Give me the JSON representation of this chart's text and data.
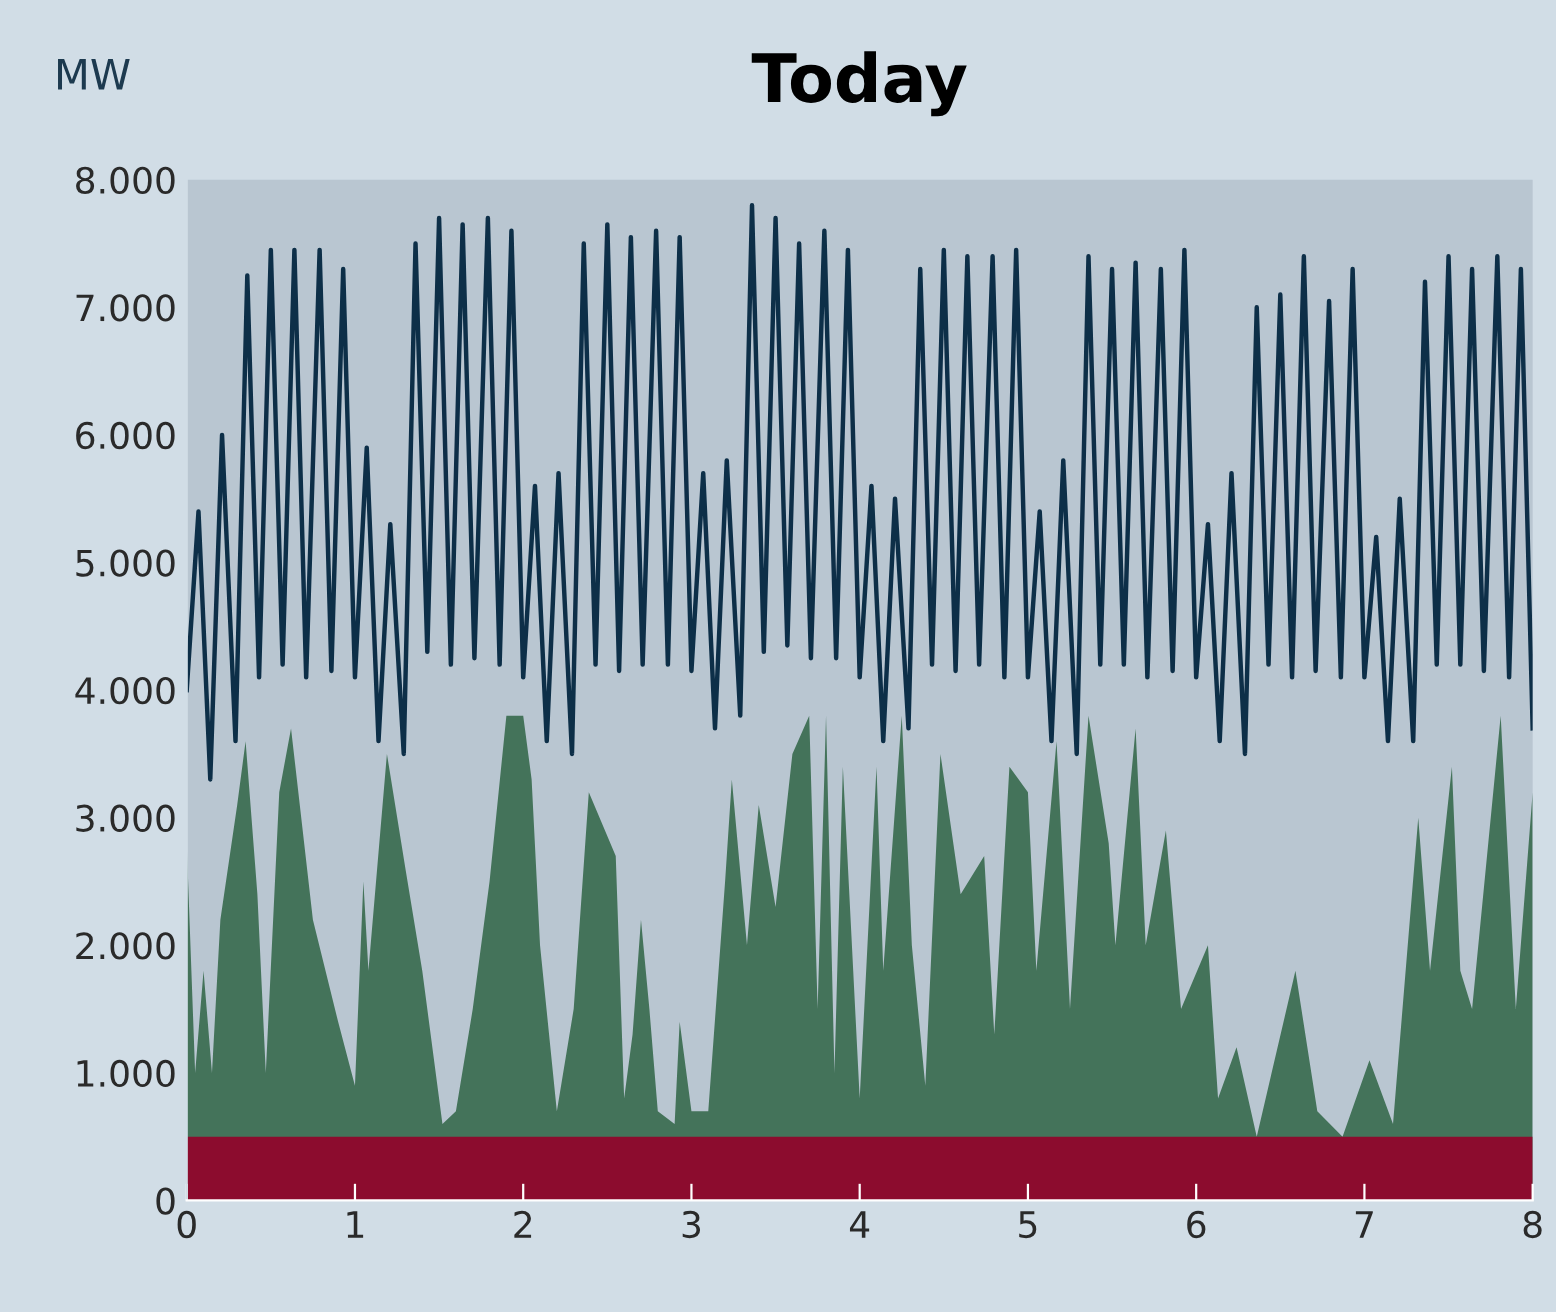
{
  "chart_data": {
    "type": "area",
    "title": "Today",
    "ylabel": "MW",
    "xlim": [
      0,
      8
    ],
    "xticks": [
      0,
      1,
      2,
      3,
      4,
      5,
      6,
      7,
      8
    ],
    "ylim": [
      0,
      8000
    ],
    "yticks": [
      {
        "value": 0,
        "label": "0"
      },
      {
        "value": 1000,
        "label": "1.000"
      },
      {
        "value": 2000,
        "label": "2.000"
      },
      {
        "value": 3000,
        "label": "3.000"
      },
      {
        "value": 4000,
        "label": "4.000"
      },
      {
        "value": 5000,
        "label": "5.000"
      },
      {
        "value": 6000,
        "label": "6.000"
      },
      {
        "value": 7000,
        "label": "7.000"
      },
      {
        "value": 8000,
        "label": "8.000"
      }
    ],
    "grid": false,
    "series": [
      {
        "color": "#44735a",
        "x": [
          0,
          0.05,
          0.1,
          0.15,
          0.2,
          0.3,
          0.35,
          0.42,
          0.47,
          0.55,
          0.62,
          0.75,
          0.9,
          1.0,
          1.05,
          1.08,
          1.19,
          1.3,
          1.4,
          1.52,
          1.6,
          1.7,
          1.8,
          1.9,
          2.0,
          2.05,
          2.1,
          2.2,
          2.3,
          2.39,
          2.55,
          2.6,
          2.65,
          2.7,
          2.75,
          2.8,
          2.9,
          2.93,
          3.0,
          3.1,
          3.2,
          3.24,
          3.33,
          3.4,
          3.5,
          3.6,
          3.7,
          3.75,
          3.8,
          3.85,
          3.9,
          4.0,
          4.1,
          4.14,
          4.25,
          4.31,
          4.39,
          4.48,
          4.6,
          4.74,
          4.8,
          4.89,
          5.0,
          5.05,
          5.17,
          5.25,
          5.36,
          5.48,
          5.52,
          5.64,
          5.7,
          5.82,
          5.91,
          6.07,
          6.13,
          6.24,
          6.36,
          6.59,
          6.72,
          6.87,
          7.03,
          7.17,
          7.32,
          7.39,
          7.52,
          7.57,
          7.64,
          7.81,
          7.9,
          8.0
        ],
        "values": [
          2800,
          1000,
          1800,
          1000,
          2200,
          3100,
          3600,
          2400,
          1000,
          3200,
          3700,
          2200,
          1400,
          900,
          2500,
          1800,
          3500,
          2600,
          1800,
          600,
          700,
          1500,
          2500,
          3800,
          3800,
          3300,
          2000,
          700,
          1500,
          3200,
          2700,
          800,
          1300,
          2200,
          1500,
          700,
          600,
          1400,
          700,
          700,
          2500,
          3300,
          2000,
          3100,
          2300,
          3500,
          3800,
          1500,
          3800,
          1000,
          3400,
          800,
          3400,
          1800,
          3800,
          2000,
          900,
          3500,
          2400,
          2700,
          1300,
          3400,
          3200,
          1800,
          3600,
          1500,
          3800,
          2800,
          2000,
          3700,
          2000,
          2900,
          1500,
          2000,
          800,
          1200,
          500,
          1800,
          700,
          500,
          1100,
          600,
          3000,
          1800,
          3400,
          1800,
          1500,
          3800,
          1500,
          3200
        ]
      },
      {
        "color": "#8c0c2e",
        "x": [
          0,
          8
        ],
        "values": [
          500,
          500
        ]
      },
      {
        "type": "line",
        "color": "#0d2f48",
        "x": [
          0,
          0.07,
          0.14,
          0.21,
          0.29,
          0.36,
          0.43,
          0.5,
          0.57,
          0.64,
          0.71,
          0.79,
          0.86,
          0.93,
          1,
          1.07,
          1.14,
          1.21,
          1.29,
          1.36,
          1.43,
          1.5,
          1.57,
          1.64,
          1.71,
          1.79,
          1.86,
          1.93,
          2,
          2.07,
          2.14,
          2.21,
          2.29,
          2.36,
          2.43,
          2.5,
          2.57,
          2.64,
          2.71,
          2.79,
          2.86,
          2.93,
          3,
          3.07,
          3.14,
          3.21,
          3.29,
          3.36,
          3.43,
          3.5,
          3.57,
          3.64,
          3.71,
          3.79,
          3.86,
          3.93,
          4,
          4.07,
          4.14,
          4.21,
          4.29,
          4.36,
          4.43,
          4.5,
          4.57,
          4.64,
          4.71,
          4.79,
          4.86,
          4.93,
          5,
          5.07,
          5.14,
          5.21,
          5.29,
          5.36,
          5.43,
          5.5,
          5.57,
          5.64,
          5.71,
          5.79,
          5.86,
          5.93,
          6,
          6.07,
          6.14,
          6.21,
          6.29,
          6.36,
          6.43,
          6.5,
          6.57,
          6.64,
          6.71,
          6.79,
          6.86,
          6.93,
          7,
          7.07,
          7.14,
          7.21,
          7.29,
          7.36,
          7.43,
          7.5,
          7.57,
          7.64,
          7.71,
          7.79,
          7.86,
          7.93,
          8
        ],
        "values": [
          4000,
          5400,
          3300,
          6000,
          3600,
          7250,
          4100,
          7450,
          4200,
          7450,
          4100,
          7450,
          4150,
          7300,
          4100,
          5900,
          3600,
          5300,
          3500,
          7500,
          4300,
          7700,
          4200,
          7650,
          4250,
          7700,
          4200,
          7600,
          4100,
          5600,
          3600,
          5700,
          3500,
          7500,
          4200,
          7650,
          4150,
          7550,
          4200,
          7600,
          4200,
          7550,
          4150,
          5700,
          3700,
          5800,
          3800,
          7800,
          4300,
          7700,
          4350,
          7500,
          4250,
          7600,
          4250,
          7450,
          4100,
          5600,
          3600,
          5500,
          3700,
          7300,
          4200,
          7450,
          4150,
          7400,
          4200,
          7400,
          4100,
          7450,
          4100,
          5400,
          3600,
          5800,
          3500,
          7400,
          4200,
          7300,
          4200,
          7350,
          4100,
          7300,
          4150,
          7450,
          4100,
          5300,
          3600,
          5700,
          3500,
          7000,
          4200,
          7100,
          4100,
          7400,
          4150,
          7050,
          4100,
          7300,
          4100,
          5200,
          3600,
          5500,
          3600,
          7200,
          4200,
          7400,
          4200,
          7300,
          4150,
          7400,
          4100,
          7300,
          3700
        ]
      }
    ]
  }
}
